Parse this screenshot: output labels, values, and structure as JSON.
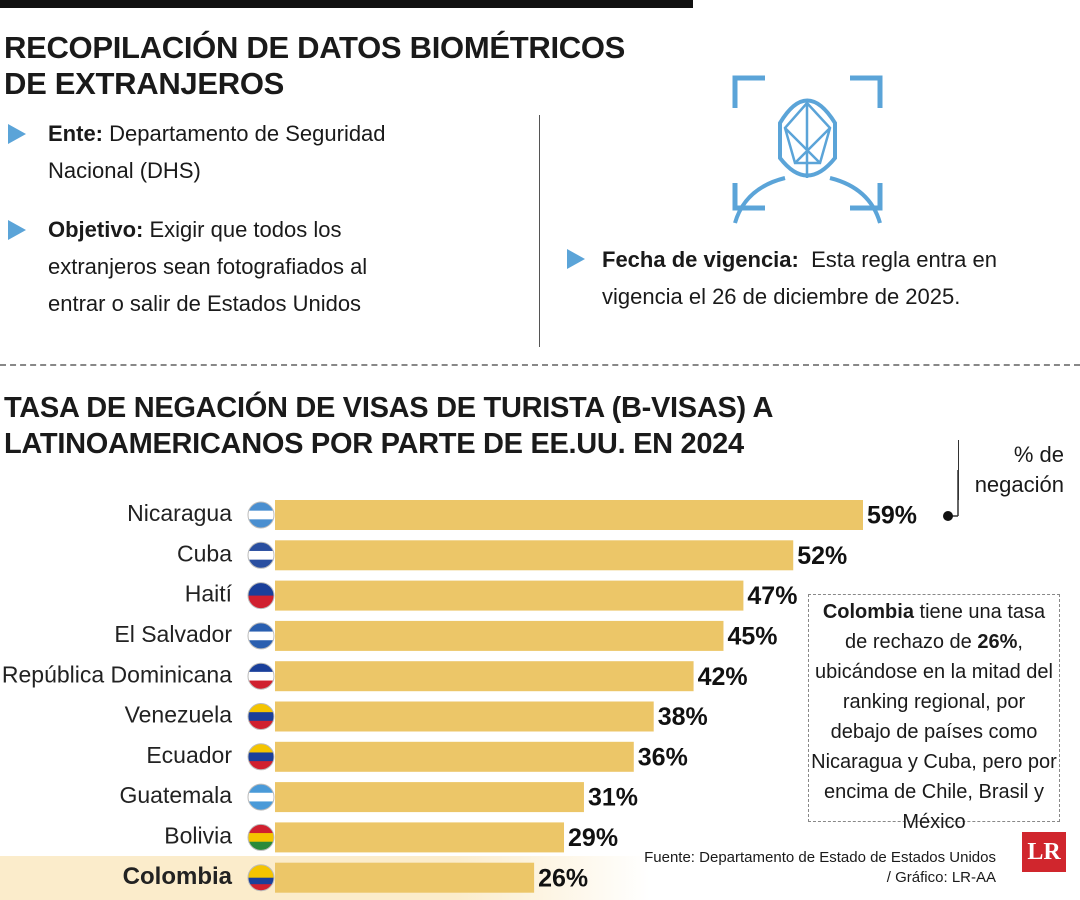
{
  "header": {
    "title": [
      "RECOPILACIÓN DE DATOS BIOMÉTRICOS",
      "DE EXTRANJEROS"
    ]
  },
  "bullets": [
    {
      "label": "Ente:",
      "text": "Departamento de Seguridad Nacional (DHS)"
    },
    {
      "label": "Objetivo:",
      "text": "Exigir que todos los extranjeros sean fotografiados al entrar o salir de Estados Unidos"
    },
    {
      "label": "Fecha de vigencia:",
      "text": "Esta regla entra en vigencia el 26 de diciembre de 2025."
    }
  ],
  "chart_data": {
    "type": "bar",
    "orientation": "horizontal",
    "title": [
      "TASA DE NEGACIÓN DE VISAS DE TURISTA (B-VISAS) A",
      "LATINOAMERICANOS POR PARTE DE EE.UU. EN 2024"
    ],
    "unit_label": "% de negación",
    "categories": [
      "Nicaragua",
      "Cuba",
      "Haití",
      "El Salvador",
      "República Dominicana",
      "Venezuela",
      "Ecuador",
      "Guatemala",
      "Bolivia",
      "Colombia"
    ],
    "values": [
      59,
      52,
      47,
      45,
      42,
      38,
      36,
      31,
      29,
      26
    ],
    "value_labels": [
      "59%",
      "52%",
      "47%",
      "45%",
      "42%",
      "38%",
      "36%",
      "31%",
      "29%",
      "26%"
    ],
    "color": "#ecc668",
    "highlight_index": 9,
    "annotation": [
      {
        "text": "Colombia",
        "bold": true
      },
      {
        "text": " tiene una tasa de rechazo de ",
        "bold": false
      },
      {
        "text": "26%",
        "bold": true
      },
      {
        "text": ", ubicándose en la mitad del ranking regional, por debajo de países como Nicaragua y Cuba, pero por encima de Chile, Brasil y México",
        "bold": false
      }
    ],
    "source": [
      "Fuente: Departamento de Estado de Estados Unidos",
      "/ Gráfico: LR-AA"
    ]
  },
  "logo": "LR"
}
